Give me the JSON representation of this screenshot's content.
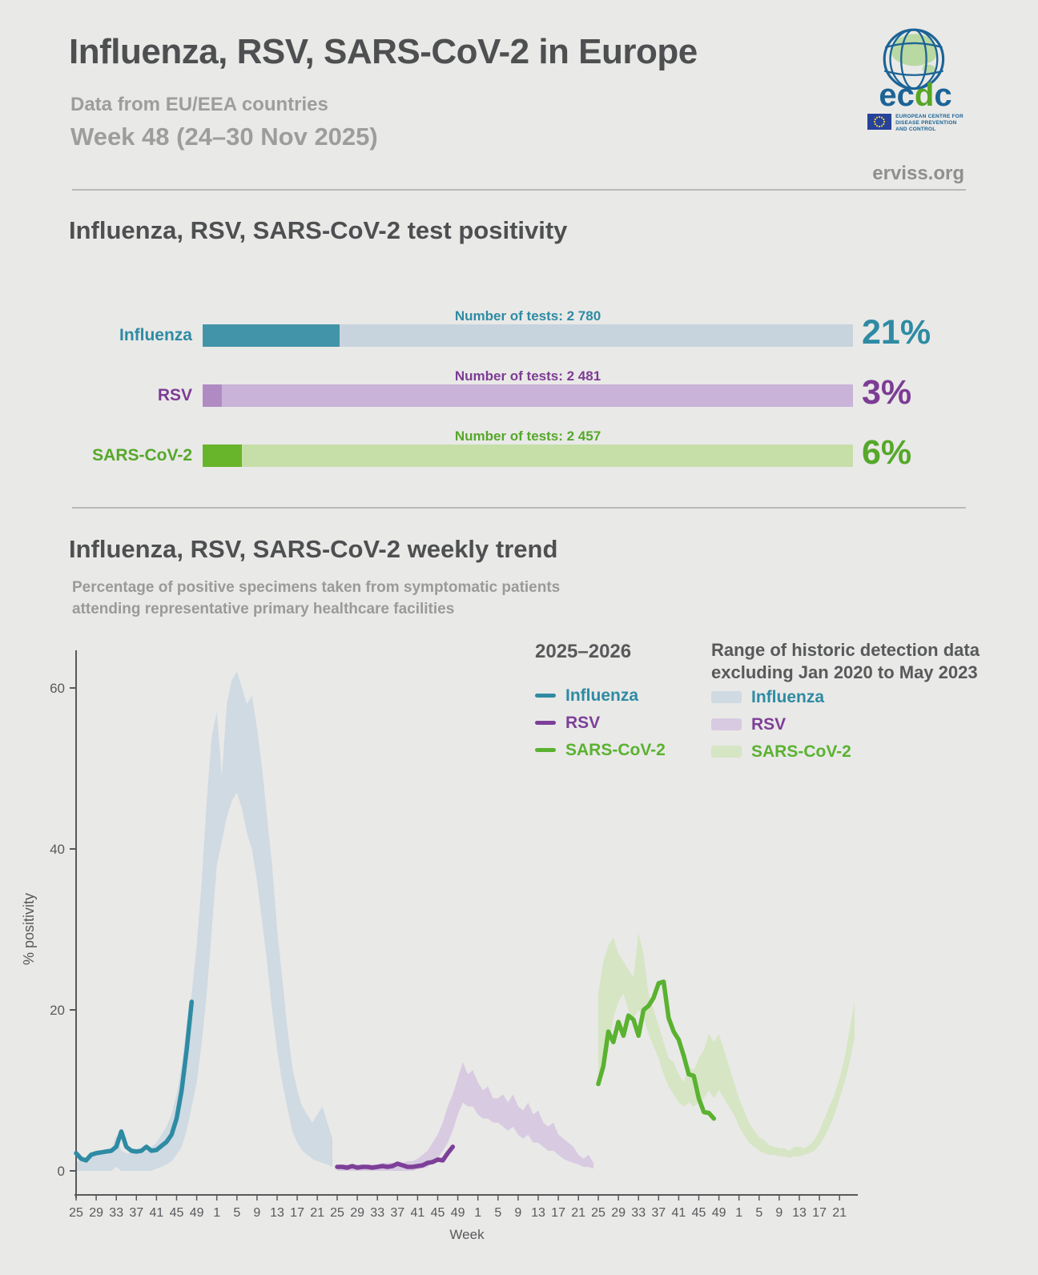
{
  "header": {
    "title": "Influenza, RSV, SARS-CoV-2 in Europe",
    "subtitle": "Data from EU/EEA countries",
    "week": "Week 48 (24–30 Nov 2025)",
    "site": "erviss.org",
    "logo": {
      "letters": [
        "e",
        "c",
        "d",
        "c"
      ],
      "blue": "#1c6396",
      "green": "#57a726",
      "org_lines": [
        "EUROPEAN CENTRE FOR",
        "DISEASE PREVENTION",
        "AND CONTROL"
      ]
    }
  },
  "positivity": {
    "title": "Influenza, RSV, SARS-CoV-2 test positivity",
    "bars": [
      {
        "label": "Influenza",
        "tests_label": "Number of tests: 2 780",
        "pct": 21,
        "pct_label": "21%",
        "fill_color": "#4295a8",
        "track_color": "#c7d4de",
        "text_color": "#2e8ba3"
      },
      {
        "label": "RSV",
        "tests_label": "Number of tests: 2 481",
        "pct": 3,
        "pct_label": "3%",
        "fill_color": "#b08bc3",
        "track_color": "#c9b3d8",
        "text_color": "#7d3c94"
      },
      {
        "label": "SARS-CoV-2",
        "tests_label": "Number of tests: 2 457",
        "pct": 6,
        "pct_label": "6%",
        "fill_color": "#68b52c",
        "track_color": "#c6dfa9",
        "text_color": "#55a82a"
      }
    ]
  },
  "trend": {
    "title": "Influenza, RSV, SARS-CoV-2 weekly trend",
    "subtitle_lines": [
      "Percentage of positive specimens taken from symptomatic patients",
      "attending representative primary healthcare facilities"
    ],
    "legend": {
      "season_title": "2025–2026",
      "historic_title_lines": [
        "Range of historic detection data",
        "excluding Jan 2020 to May 2023"
      ]
    }
  },
  "chart_data": {
    "type": "line",
    "title": "Influenza, RSV, SARS-CoV-2 weekly trend",
    "ylabel": "% positivity",
    "xlabel": "Week",
    "ylim": [
      0,
      65
    ],
    "yticks": [
      0,
      20,
      40,
      60
    ],
    "week_tick_labels": [
      "25",
      "29",
      "33",
      "37",
      "41",
      "45",
      "49",
      "1",
      "5",
      "9",
      "13",
      "17",
      "21"
    ],
    "weeks_span_note": "each panel runs week 25 through week 24 of the following year",
    "current_season_weeks": [
      25,
      26,
      27,
      28,
      29,
      30,
      31,
      32,
      33,
      34,
      35,
      36,
      37,
      38,
      39,
      40,
      41,
      42,
      43,
      44,
      45,
      46,
      47,
      48
    ],
    "panels": [
      {
        "name": "Influenza",
        "line_color": "#2e8ba3",
        "band_color": "#cfdae2",
        "current": [
          2.2,
          1.5,
          1.3,
          2.0,
          2.2,
          2.3,
          2.4,
          2.5,
          3.0,
          4.9,
          3.0,
          2.5,
          2.4,
          2.5,
          3.0,
          2.5,
          2.6,
          3.1,
          3.6,
          4.5,
          6.5,
          10,
          15,
          21
        ],
        "band_upper": [
          1.2,
          1.2,
          1.5,
          1.8,
          2.0,
          2.0,
          2.0,
          2.5,
          4.5,
          2.5,
          2.2,
          2.2,
          2.5,
          2.2,
          2.5,
          3.0,
          3.5,
          4.5,
          5.5,
          7.0,
          9.5,
          13,
          18,
          22,
          28,
          36,
          46,
          54,
          57,
          49,
          58,
          61,
          62,
          60,
          58,
          59,
          55,
          50,
          44,
          38,
          30,
          24,
          18,
          13,
          10,
          8,
          7,
          6,
          7,
          8,
          6,
          4
        ],
        "band_lower": [
          0,
          0,
          0,
          0,
          0,
          0,
          0,
          0,
          0.5,
          0,
          0,
          0,
          0,
          0,
          0,
          0,
          0.3,
          0.5,
          0.8,
          1.2,
          2,
          3,
          5,
          8,
          11,
          16,
          22,
          30,
          38,
          41,
          44,
          46,
          47,
          45,
          42,
          40,
          36,
          31,
          26,
          20,
          15,
          11,
          8,
          5,
          3.5,
          2.5,
          2,
          1.5,
          1.2,
          1,
          0.8,
          0.5
        ]
      },
      {
        "name": "RSV",
        "line_color": "#7d3f98",
        "band_color": "#d7cae1",
        "current": [
          0.5,
          0.5,
          0.4,
          0.6,
          0.4,
          0.5,
          0.5,
          0.4,
          0.5,
          0.6,
          0.5,
          0.6,
          0.9,
          0.7,
          0.5,
          0.5,
          0.6,
          0.7,
          1.0,
          1.1,
          1.4,
          1.3,
          2.2,
          3.0
        ],
        "band_upper": [
          0.8,
          0.8,
          0.8,
          0.8,
          0.8,
          0.8,
          0.8,
          0.8,
          0.8,
          1.0,
          1.0,
          1.0,
          1.0,
          1.0,
          1.2,
          1.2,
          1.5,
          2.0,
          2.5,
          3.5,
          4.5,
          6,
          8,
          9.5,
          11.5,
          13.5,
          12,
          12.5,
          11,
          10,
          10.5,
          9,
          9,
          9.5,
          8.5,
          9.5,
          8,
          7.5,
          8.5,
          7,
          7.5,
          6,
          5.5,
          6,
          4.5,
          4,
          3.5,
          3,
          2,
          1.5,
          2,
          1
        ],
        "band_lower": [
          0,
          0,
          0,
          0,
          0,
          0,
          0,
          0,
          0,
          0,
          0,
          0,
          0,
          0,
          0,
          0,
          0.2,
          0.3,
          0.5,
          1,
          1.5,
          2.5,
          3.5,
          5,
          7,
          8.5,
          8,
          8,
          7,
          6.5,
          6.5,
          6,
          6,
          5.5,
          5,
          5.5,
          4.5,
          4,
          4.5,
          3.5,
          3.5,
          3,
          2.5,
          2.5,
          2,
          1.5,
          1.2,
          1,
          0.8,
          0.5,
          0.5,
          0.3
        ]
      },
      {
        "name": "SARS-CoV-2",
        "line_color": "#5ab230",
        "band_color": "#d6e5c4",
        "current": [
          10.8,
          13,
          17.3,
          16,
          18.5,
          16.8,
          19.3,
          18.8,
          16.8,
          20,
          20.5,
          21.5,
          23.3,
          23.5,
          19,
          17.3,
          16.3,
          14.3,
          12,
          11.8,
          9,
          7.3,
          7.2,
          6.5
        ],
        "band_upper": [
          22,
          26,
          28,
          29,
          27,
          26,
          25,
          24,
          29.5,
          27,
          22,
          20,
          18,
          16,
          14,
          13.5,
          12,
          11,
          13,
          12.5,
          14,
          15,
          17,
          16,
          17,
          15,
          13,
          11,
          9,
          7.5,
          6,
          5,
          4.2,
          3.8,
          3.2,
          3,
          2.8,
          2.8,
          2.5,
          3,
          3,
          2.8,
          3.2,
          3.8,
          5,
          6.5,
          8,
          9.5,
          11.5,
          14,
          17.5,
          21
        ],
        "band_lower": [
          11,
          13,
          15,
          19,
          21,
          22,
          20,
          19,
          20,
          19,
          17,
          15.5,
          14,
          12,
          10.5,
          9.5,
          8.5,
          8,
          8.5,
          8,
          8.5,
          9,
          10,
          9,
          10,
          9,
          8,
          7,
          5.5,
          4.5,
          3.5,
          3,
          2.5,
          2.2,
          2,
          2,
          1.8,
          1.8,
          1.6,
          1.8,
          1.8,
          2,
          2.2,
          2.5,
          3.2,
          4.2,
          5.5,
          7,
          9,
          11,
          13.5,
          16.5
        ]
      }
    ]
  }
}
